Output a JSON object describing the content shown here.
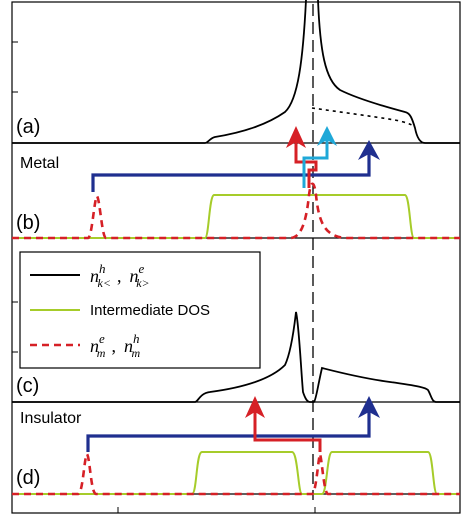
{
  "panel_labels": {
    "a": "(a)",
    "b": "(b)",
    "c": "(c)",
    "d": "(d)"
  },
  "side_labels": {
    "metal": "Metal",
    "insulator": "Insulator"
  },
  "legend": {
    "item1": {
      "n": "n",
      "sub1": "k<",
      "sup1": "h",
      "sep": ",",
      "n2": "n",
      "sub2": "k>",
      "sup2": "e",
      "color": "#000000"
    },
    "item2": {
      "label": "Intermediate DOS",
      "color": "#a6cc2a"
    },
    "item3": {
      "n": "n",
      "sub1": "m",
      "sup1": "e",
      "sep": ",",
      "n2": "n",
      "sub2": "m",
      "sup2": "h",
      "color": "#d62026"
    }
  },
  "colors": {
    "black": "#000000",
    "green": "#a6cc2a",
    "red": "#d62026",
    "blue": "#1f2f8f",
    "cyan": "#1fa8d8"
  }
}
